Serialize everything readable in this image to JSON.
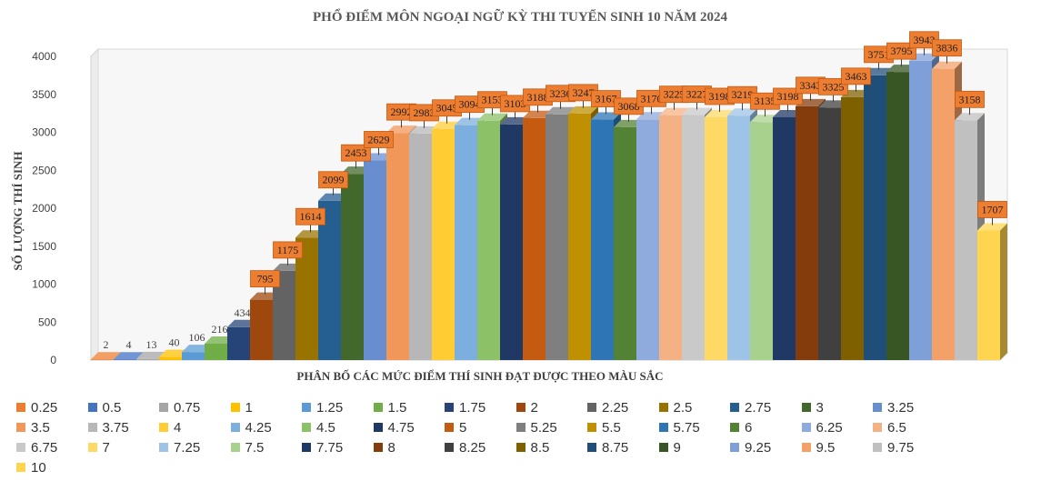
{
  "chart_data": {
    "type": "bar",
    "title": "PHỔ ĐIỂM MÔN NGOẠI NGỮ KỲ THI TUYỂN SINH 10 NĂM 2024",
    "xlabel": "PHÂN BỐ CÁC MỨC ĐIỂM THÍ SINH ĐẠT ĐƯỢC THEO MÀU SẮC",
    "ylabel": "SỐ LƯỢNG THÍ SINH",
    "ylim": [
      0,
      4000
    ],
    "yticks": [
      "0",
      "500",
      "1000",
      "1500",
      "2000",
      "2500",
      "3000",
      "3500",
      "4000"
    ],
    "grid": false,
    "legend": "bottom",
    "categories": [
      "0.25",
      "0.5",
      "0.75",
      "1",
      "1.25",
      "1.5",
      "1.75",
      "2",
      "2.25",
      "2.5",
      "2.75",
      "3",
      "3.25",
      "3.5",
      "3.75",
      "4",
      "4.25",
      "4.5",
      "4.75",
      "5",
      "5.25",
      "5.5",
      "5.75",
      "6",
      "6.25",
      "6.5",
      "6.75",
      "7",
      "7.25",
      "7.5",
      "7.75",
      "8",
      "8.25",
      "8.5",
      "8.75",
      "9",
      "9.25",
      "9.5",
      "9.75",
      "10"
    ],
    "values": [
      2,
      4,
      13,
      40,
      106,
      216,
      434,
      795,
      1175,
      1614,
      2099,
      2453,
      2629,
      2992,
      2983,
      3045,
      3094,
      3153,
      3103,
      3188,
      3236,
      3247,
      3167,
      3068,
      3170,
      3225,
      3227,
      3198,
      3219,
      3135,
      3198,
      3343,
      3325,
      3463,
      3751,
      3795,
      3943,
      3836,
      3158,
      1707
    ],
    "data_labels": [
      "2",
      "4",
      "13",
      "40",
      "106",
      "216",
      "434",
      "795",
      "1175",
      "1614",
      "2099",
      "2453",
      "2629",
      "2992",
      "2983",
      "3045",
      "3094",
      "3153",
      "3103",
      "3188",
      "3236",
      "3247",
      "3167",
      "3068",
      "3170",
      "3225",
      "3227",
      "3198",
      "3219",
      "3135",
      "3198",
      "3343",
      "3325",
      "3463",
      "3751",
      "3795",
      "3943",
      "3836",
      "3158",
      "1707"
    ],
    "colors": [
      "#ED7D31",
      "#4472C4",
      "#A5A5A5",
      "#FFC000",
      "#5B9BD5",
      "#70AD47",
      "#264478",
      "#9E480E",
      "#636363",
      "#997300",
      "#255E91",
      "#43682B",
      "#698ED0",
      "#F1975A",
      "#B7B7B7",
      "#FFCD33",
      "#7CAFDD",
      "#8CC168",
      "#203864",
      "#C55A11",
      "#7F7F7F",
      "#BF9000",
      "#2E75B6",
      "#548235",
      "#8FAADC",
      "#F4B183",
      "#C9C9C9",
      "#FFD966",
      "#9DC3E6",
      "#A9D18E",
      "#1F3864",
      "#843C0C",
      "#404040",
      "#7F6000",
      "#1F4E79",
      "#375623",
      "#7F9FD8",
      "#F3A069",
      "#C0C0C0",
      "#FFD54F"
    ]
  }
}
